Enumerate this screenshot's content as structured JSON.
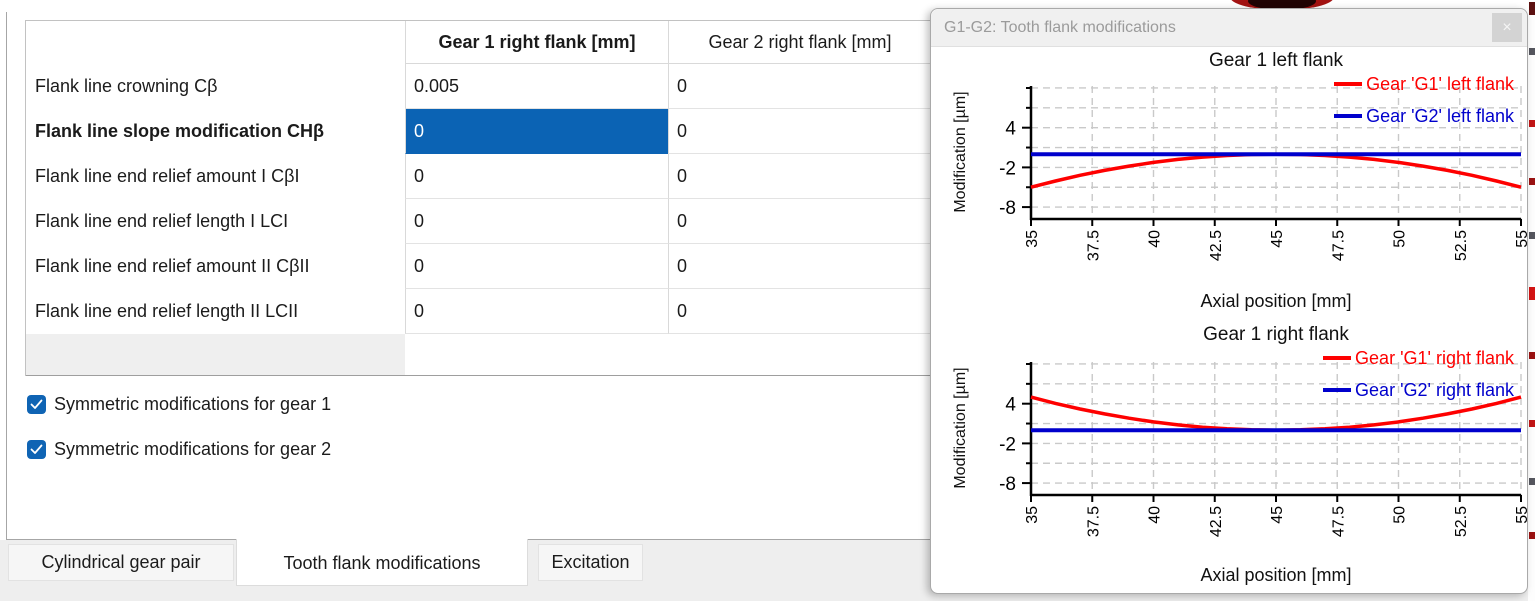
{
  "table": {
    "columns": [
      "",
      "Gear 1 right flank [mm]",
      "Gear 2 right flank [mm]"
    ],
    "rows": [
      {
        "label": "Flank line crowning Cβ",
        "gear1": "0.005",
        "gear2": "0",
        "selected": false
      },
      {
        "label": "Flank line slope modification CHβ",
        "gear1": "0",
        "gear2": "0",
        "selected": true
      },
      {
        "label": "Flank line end relief amount I CβI",
        "gear1": "0",
        "gear2": "0",
        "selected": false
      },
      {
        "label": "Flank line end relief length I LCI",
        "gear1": "0",
        "gear2": "0",
        "selected": false
      },
      {
        "label": "Flank line end relief amount II CβII",
        "gear1": "0",
        "gear2": "0",
        "selected": false
      },
      {
        "label": "Flank line end relief length II LCII",
        "gear1": "0",
        "gear2": "0",
        "selected": false
      }
    ]
  },
  "checkboxes": [
    {
      "label": "Symmetric modifications for gear 1",
      "checked": true
    },
    {
      "label": "Symmetric modifications for gear 2",
      "checked": true
    }
  ],
  "tabs": [
    {
      "label": "Cylindrical gear pair",
      "active": false
    },
    {
      "label": "Tooth flank modifications",
      "active": true
    },
    {
      "label": "Excitation",
      "active": false
    }
  ],
  "panel": {
    "title": "G1-G2: Tooth flank modifications",
    "close_label": "×"
  },
  "colors": {
    "accent_blue": "#0b63b4",
    "series_red": "#fe0000",
    "series_blue": "#0000cc"
  },
  "chart_data": [
    {
      "type": "line",
      "title": "Gear 1 left flank",
      "xlabel": "Axial position [mm]",
      "ylabel": "Modification [µm]",
      "xlim": [
        35,
        55
      ],
      "ylim": [
        10.3,
        -9.8
      ],
      "xticks": [
        35,
        37.5,
        40,
        42.5,
        45,
        47.5,
        50,
        52.5,
        55
      ],
      "yticks_major": [
        4,
        -2,
        -8
      ],
      "yticks_minor": [
        10,
        7,
        1,
        -5
      ],
      "grid": true,
      "legend_position": "top-right",
      "series": [
        {
          "name": "Gear 'G1' left flank",
          "color": "#fe0000",
          "width": 3.5,
          "points": [
            [
              35,
              -5
            ],
            [
              36,
              -4.05
            ],
            [
              37,
              -3.2
            ],
            [
              38,
              -2.45
            ],
            [
              39,
              -1.8
            ],
            [
              40,
              -1.25
            ],
            [
              41,
              -0.8
            ],
            [
              42,
              -0.45
            ],
            [
              43,
              -0.2
            ],
            [
              44,
              -0.05
            ],
            [
              45,
              0
            ],
            [
              46,
              -0.05
            ],
            [
              47,
              -0.2
            ],
            [
              48,
              -0.45
            ],
            [
              49,
              -0.8
            ],
            [
              50,
              -1.25
            ],
            [
              51,
              -1.8
            ],
            [
              52,
              -2.45
            ],
            [
              53,
              -3.2
            ],
            [
              54,
              -4.05
            ],
            [
              55,
              -5
            ]
          ]
        },
        {
          "name": "Gear 'G2' left flank",
          "color": "#0000cc",
          "width": 4,
          "points": [
            [
              35,
              0
            ],
            [
              55,
              0
            ]
          ]
        }
      ]
    },
    {
      "type": "line",
      "title": "Gear 1 right flank",
      "xlabel": "Axial position [mm]",
      "ylabel": "Modification [µm]",
      "xlim": [
        35,
        55
      ],
      "ylim": [
        10.3,
        -9.8
      ],
      "xticks": [
        35,
        37.5,
        40,
        42.5,
        45,
        47.5,
        50,
        52.5,
        55
      ],
      "yticks_major": [
        4,
        -2,
        -8
      ],
      "yticks_minor": [
        10,
        7,
        1,
        -5
      ],
      "grid": true,
      "legend_position": "top-right",
      "series": [
        {
          "name": "Gear 'G1' right flank",
          "color": "#fe0000",
          "width": 3.5,
          "points": [
            [
              35,
              5
            ],
            [
              36,
              4.05
            ],
            [
              37,
              3.2
            ],
            [
              38,
              2.45
            ],
            [
              39,
              1.8
            ],
            [
              40,
              1.25
            ],
            [
              41,
              0.8
            ],
            [
              42,
              0.45
            ],
            [
              43,
              0.2
            ],
            [
              44,
              0.05
            ],
            [
              45,
              0
            ],
            [
              46,
              0.05
            ],
            [
              47,
              0.2
            ],
            [
              48,
              0.45
            ],
            [
              49,
              0.8
            ],
            [
              50,
              1.25
            ],
            [
              51,
              1.8
            ],
            [
              52,
              2.45
            ],
            [
              53,
              3.2
            ],
            [
              54,
              4.05
            ],
            [
              55,
              5
            ]
          ]
        },
        {
          "name": "Gear 'G2' right flank",
          "color": "#0000cc",
          "width": 4,
          "points": [
            [
              35,
              0
            ],
            [
              55,
              0
            ]
          ]
        }
      ]
    }
  ]
}
